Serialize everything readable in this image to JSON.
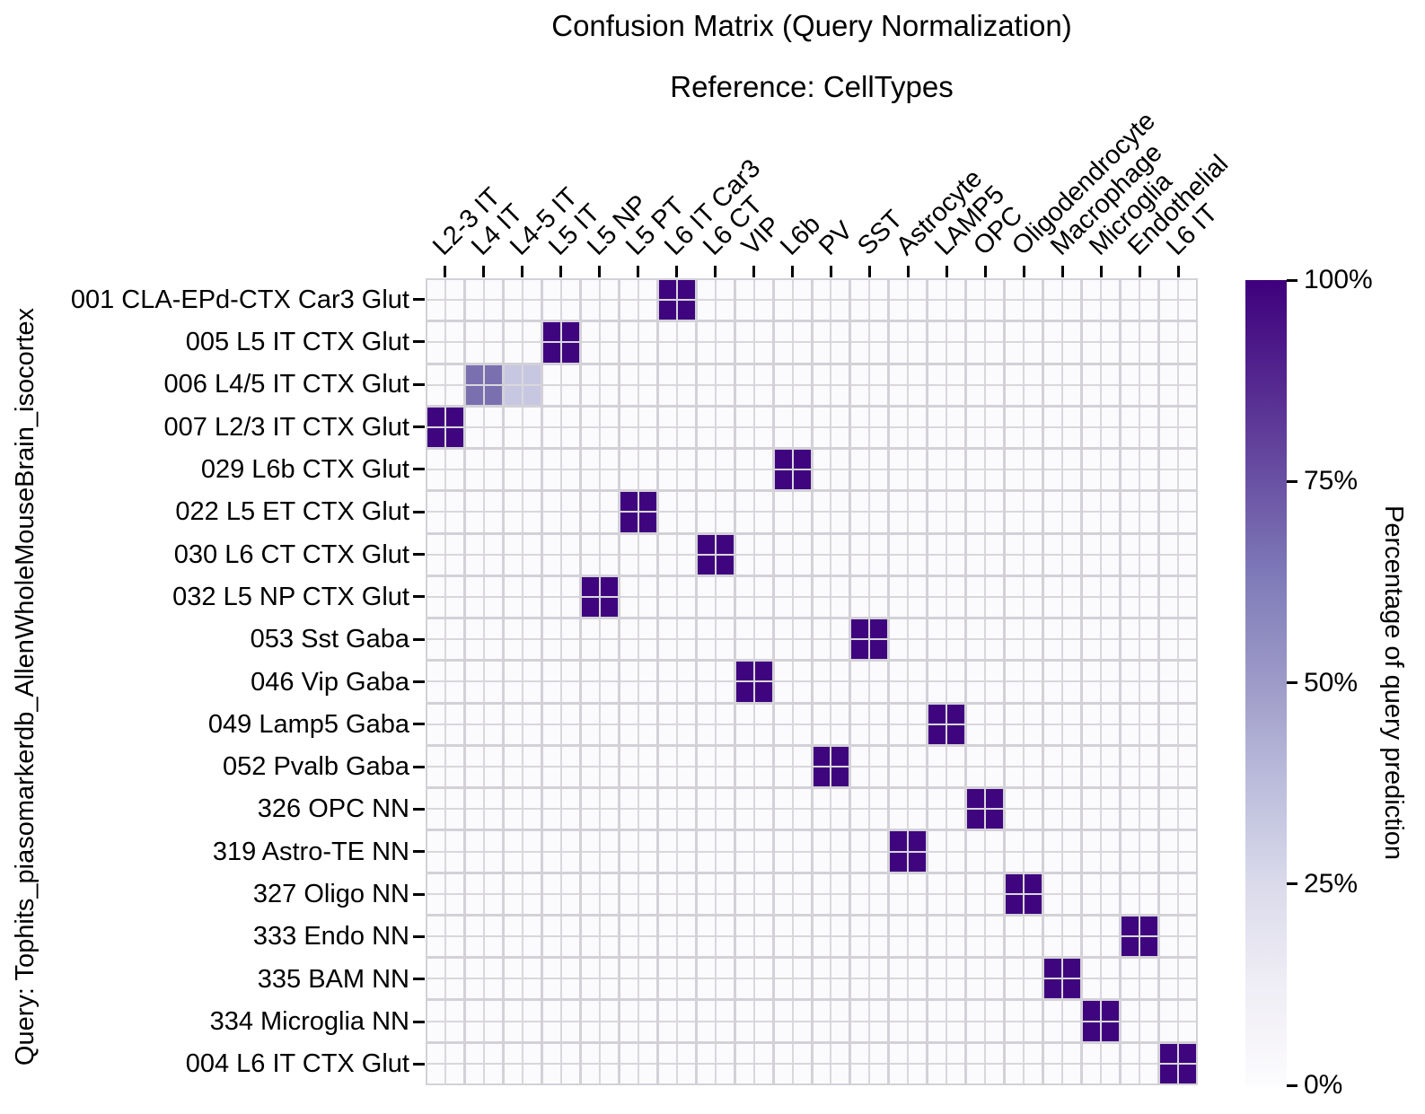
{
  "title": "Confusion Matrix (Query Normalization)",
  "subtitle": "Reference: CellTypes",
  "y_axis_label": "Query: Tophits_piasomarkerdb_AllenWholeMouseBrain_isocortex",
  "colorbar": {
    "label": "Percentage of query prediction",
    "ticks": [
      "100%",
      "75%",
      "50%",
      "25%",
      "0%"
    ],
    "gradient_top_to_bottom": [
      "#3f007d",
      "#54278f",
      "#6a51a3",
      "#807dba",
      "#9e9ac8",
      "#bcbddc",
      "#dadaeb",
      "#efedf5",
      "#fcfbfd"
    ]
  },
  "styles": {
    "empty_cell": "#fbfafd",
    "grid_line": "#d3d1d7",
    "inner_grid_line": "#d9d7dc",
    "full_value_color": "#3f057f",
    "tick_color": "#000000"
  },
  "chart_data": {
    "type": "heatmap",
    "title": "Confusion Matrix (Query Normalization)",
    "subtitle": "Reference: CellTypes",
    "ylabel": "Query: Tophits_piasomarkerdb_AllenWholeMouseBrain_isocortex",
    "legend_position": "right-colorbar",
    "grid": true,
    "value_unit": "%",
    "value_range": [
      0,
      100
    ],
    "columns": [
      "L2-3 IT",
      "L4 IT",
      "L4-5 IT",
      "L5 IT",
      "L5 NP",
      "L5 PT",
      "L6 IT Car3",
      "L6 CT",
      "VIP",
      "L6b",
      "PV",
      "SST",
      "Astrocyte",
      "LAMP5",
      "OPC",
      "Oligodendrocyte",
      "Macrophage",
      "Microglia",
      "Endothelial",
      "L6 IT"
    ],
    "rows": [
      "001 CLA-EPd-CTX Car3 Glut",
      "005 L5 IT CTX Glut",
      "006 L4/5 IT CTX Glut",
      "007 L2/3 IT CTX Glut",
      "029 L6b CTX Glut",
      "022 L5 ET CTX Glut",
      "030 L6 CT CTX Glut",
      "032 L5 NP CTX Glut",
      "053 Sst Gaba",
      "046 Vip Gaba",
      "049 Lamp5 Gaba",
      "052 Pvalb Gaba",
      "326 OPC NN",
      "319 Astro-TE NN",
      "327 Oligo NN",
      "333 Endo NN",
      "335 BAM NN",
      "334 Microglia NN",
      "004 L6 IT CTX Glut"
    ],
    "cells": [
      {
        "row": "001 CLA-EPd-CTX Car3 Glut",
        "col": "L6 IT Car3",
        "value": 100,
        "color": "#3f057f"
      },
      {
        "row": "005 L5 IT CTX Glut",
        "col": "L5 IT",
        "value": 100,
        "color": "#3f057f"
      },
      {
        "row": "006 L4/5 IT CTX Glut",
        "col": "L4 IT",
        "value": 65,
        "color": "#7a70b0"
      },
      {
        "row": "006 L4/5 IT CTX Glut",
        "col": "L4-5 IT",
        "value": 35,
        "color": "#c8c7e1"
      },
      {
        "row": "007 L2/3 IT CTX Glut",
        "col": "L2-3 IT",
        "value": 100,
        "color": "#3f057f"
      },
      {
        "row": "029 L6b CTX Glut",
        "col": "L6b",
        "value": 100,
        "color": "#3f057f"
      },
      {
        "row": "022 L5 ET CTX Glut",
        "col": "L5 PT",
        "value": 100,
        "color": "#3f057f"
      },
      {
        "row": "030 L6 CT CTX Glut",
        "col": "L6 CT",
        "value": 100,
        "color": "#3f057f"
      },
      {
        "row": "032 L5 NP CTX Glut",
        "col": "L5 NP",
        "value": 100,
        "color": "#3f057f"
      },
      {
        "row": "053 Sst Gaba",
        "col": "SST",
        "value": 100,
        "color": "#3f057f"
      },
      {
        "row": "046 Vip Gaba",
        "col": "VIP",
        "value": 100,
        "color": "#3f057f"
      },
      {
        "row": "049 Lamp5 Gaba",
        "col": "LAMP5",
        "value": 100,
        "color": "#3f057f"
      },
      {
        "row": "052 Pvalb Gaba",
        "col": "PV",
        "value": 100,
        "color": "#3f057f"
      },
      {
        "row": "326 OPC NN",
        "col": "OPC",
        "value": 100,
        "color": "#3f057f"
      },
      {
        "row": "319 Astro-TE NN",
        "col": "Astrocyte",
        "value": 100,
        "color": "#3f057f"
      },
      {
        "row": "327 Oligo NN",
        "col": "Oligodendrocyte",
        "value": 100,
        "color": "#3f057f"
      },
      {
        "row": "333 Endo NN",
        "col": "Endothelial",
        "value": 100,
        "color": "#3f057f"
      },
      {
        "row": "335 BAM NN",
        "col": "Macrophage",
        "value": 100,
        "color": "#3f057f"
      },
      {
        "row": "334 Microglia NN",
        "col": "Microglia",
        "value": 100,
        "color": "#3f057f"
      },
      {
        "row": "004 L6 IT CTX Glut",
        "col": "L6 IT",
        "value": 100,
        "color": "#3f057f"
      }
    ]
  }
}
